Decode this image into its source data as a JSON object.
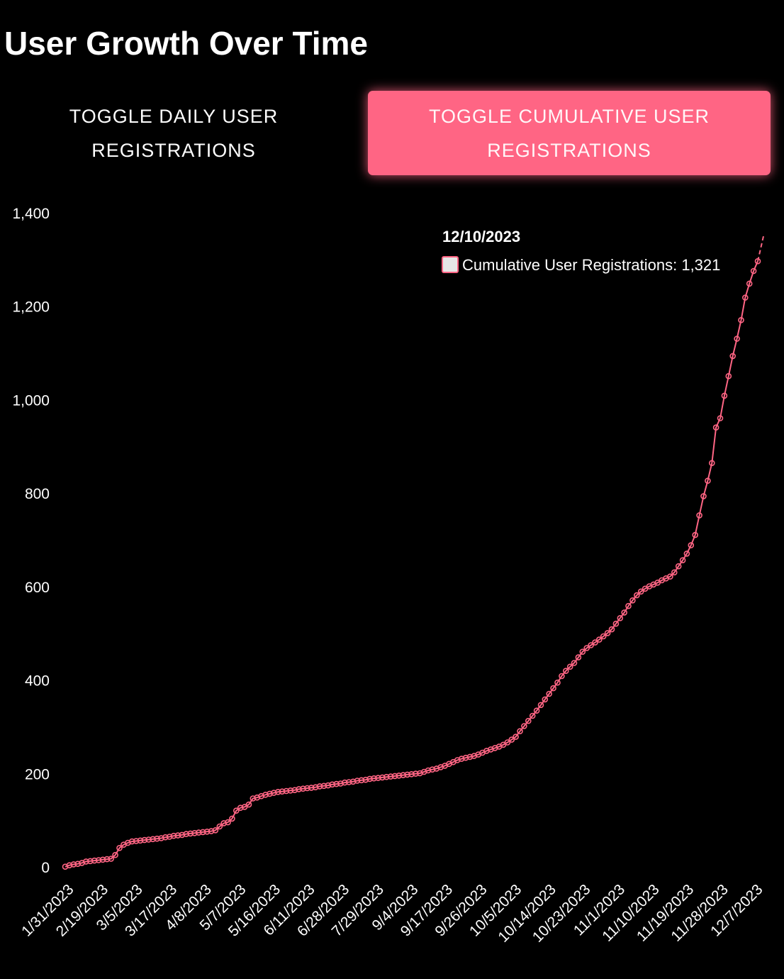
{
  "header": {
    "title": "User Growth Over Time"
  },
  "toggles": {
    "daily_label": "TOGGLE DAILY USER REGISTRATIONS",
    "cumulative_label": "TOGGLE CUMULATIVE USER REGISTRATIONS",
    "active": "cumulative"
  },
  "colors": {
    "accent": "#ff6584",
    "background": "#000000",
    "text": "#ffffff",
    "tooltip_swatch": "#e6e6e6"
  },
  "tooltip": {
    "date": "12/10/2023",
    "label": "Cumulative User Registrations: 1,321"
  },
  "chart_data": {
    "type": "line",
    "title": "User Growth Over Time",
    "xlabel": "",
    "ylabel": "",
    "ylim": [
      0,
      1400
    ],
    "yticks": [
      "0",
      "200",
      "400",
      "600",
      "800",
      "1,000",
      "1,200",
      "1,400"
    ],
    "xtick_labels": [
      "1/31/2023",
      "2/19/2023",
      "3/5/2023",
      "3/17/2023",
      "4/8/2023",
      "5/7/2023",
      "5/16/2023",
      "6/11/2023",
      "6/28/2023",
      "7/29/2023",
      "9/4/2023",
      "9/17/2023",
      "9/26/2023",
      "10/5/2023",
      "10/14/2023",
      "10/23/2023",
      "11/1/2023",
      "11/10/2023",
      "11/19/2023",
      "11/28/2023",
      "12/7/2023"
    ],
    "grid": false,
    "legend": "none",
    "series": [
      {
        "name": "Cumulative User Registrations",
        "values": [
          2,
          5,
          7,
          8,
          10,
          13,
          14,
          15,
          16,
          17,
          18,
          19,
          27,
          42,
          49,
          53,
          56,
          57,
          58,
          59,
          60,
          61,
          62,
          63,
          65,
          66,
          68,
          69,
          70,
          72,
          73,
          74,
          75,
          76,
          77,
          78,
          80,
          88,
          95,
          97,
          105,
          122,
          128,
          130,
          135,
          148,
          150,
          153,
          156,
          158,
          160,
          162,
          163,
          164,
          165,
          166,
          168,
          169,
          170,
          171,
          172,
          174,
          175,
          176,
          178,
          179,
          180,
          182,
          183,
          184,
          186,
          187,
          188,
          190,
          191,
          192,
          193,
          194,
          195,
          196,
          197,
          198,
          199,
          200,
          201,
          202,
          205,
          208,
          210,
          212,
          215,
          218,
          222,
          226,
          230,
          233,
          235,
          237,
          239,
          242,
          246,
          250,
          253,
          256,
          259,
          263,
          268,
          274,
          280,
          292,
          303,
          314,
          325,
          336,
          348,
          360,
          372,
          384,
          396,
          410,
          421,
          430,
          438,
          450,
          462,
          470,
          476,
          482,
          488,
          495,
          502,
          510,
          522,
          534,
          546,
          560,
          572,
          583,
          591,
          597,
          602,
          606,
          610,
          615,
          619,
          623,
          632,
          645,
          658,
          672,
          690,
          712,
          754,
          795,
          828,
          866,
          942,
          962,
          1010,
          1052,
          1095,
          1132,
          1172,
          1220,
          1250,
          1277,
          1298
        ]
      }
    ]
  }
}
